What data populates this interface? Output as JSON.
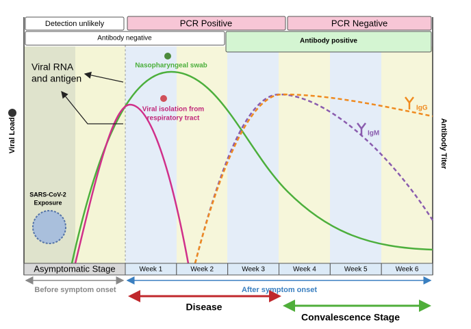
{
  "top_rows": {
    "detection": "Detection unlikely",
    "pcr_positive": "PCR Positive",
    "pcr_negative": "PCR Negative",
    "antibody_negative": "Antibody negative",
    "antibody_positive": "Antibody positive"
  },
  "axes": {
    "left": "Viral Load",
    "right": "Antibody Titer"
  },
  "labels": {
    "viral_rna": [
      "Viral RNA",
      "and antigen"
    ],
    "swab": "Nasopharyngeal swab",
    "isolation": [
      "Viral isolation from",
      "respiratory tract"
    ],
    "igg": "IgG",
    "igm": "IgM",
    "exposure": [
      "SARS-CoV-2",
      "Exposure"
    ]
  },
  "timeline": {
    "asymptomatic": "Asymptomatic Stage",
    "weeks": [
      "Week 1",
      "Week 2",
      "Week 3",
      "Week 4",
      "Week 5",
      "Week 6"
    ]
  },
  "phases": {
    "before": "Before symptom onset",
    "after": "After symptom onset",
    "disease": "Disease",
    "convalescence": "Convalescence Stage"
  }
}
